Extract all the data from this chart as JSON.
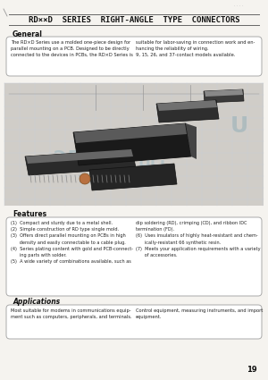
{
  "title": "RD××D  SERIES  RIGHT-ANGLE  TYPE  CONNECTORS",
  "page_bg": "#f5f3ef",
  "general_title": "General",
  "general_text_left": "The RD×D Series use a molded one-piece design for\nparallel mounting on a PCB. Designed to be directly\nconnected to the devices in PCBs, the RD×D Series is",
  "general_text_right": "suitable for labor-saving in connection work and en-\nhancing the reliability of wiring.\n9, 15, 26, and 37-contact models available.",
  "features_title": "Features",
  "features_left_lines": [
    "(1)  Compact and sturdy due to a metal shell.",
    "(2)  Simple construction of RD type single mold.",
    "(3)  Offers direct parallel mounting on PCBs in high",
    "      density and easily connectable to a cable plug.",
    "(4)  Series plating content with gold and PCB-connect-",
    "      ing parts with solder.",
    "(5)  A wide variety of combinations available, such as"
  ],
  "features_right_lines": [
    "dip soldering (RD), crimping (CD), and ribbon IDC",
    "termination (FD).",
    "(6)  Uses insulators of highly heat-resistant and chem-",
    "      ically-resistant 66 synthetic resin.",
    "(7)  Meets your application requirements with a variety",
    "      of accessories."
  ],
  "applications_title": "Applications",
  "applications_text_left": "Most suitable for modems in communications equip-\nment such as computers, peripherals, and terminals.",
  "applications_text_right": "Control equipment, measuring instruments, and import\nequipment.",
  "page_number": "19",
  "title_color": "#111111",
  "box_edge_color": "#aaaaaa",
  "box_fill_color": "#ffffff",
  "section_title_color": "#111111",
  "body_text_color": "#222222",
  "grid_color": "#c8d0d8",
  "img_bg_color": "#d0cdc8",
  "line_color": "#666666"
}
